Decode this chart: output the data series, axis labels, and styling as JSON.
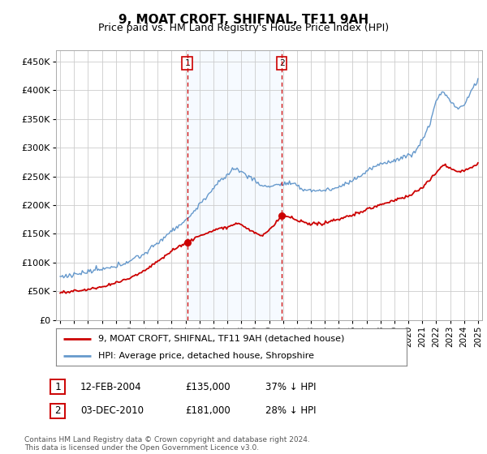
{
  "title": "9, MOAT CROFT, SHIFNAL, TF11 9AH",
  "subtitle": "Price paid vs. HM Land Registry's House Price Index (HPI)",
  "legend_line1": "9, MOAT CROFT, SHIFNAL, TF11 9AH (detached house)",
  "legend_line2": "HPI: Average price, detached house, Shropshire",
  "annotation1": {
    "num": "1",
    "date": "12-FEB-2004",
    "price": "£135,000",
    "pct": "37% ↓ HPI",
    "x_year": 2004.12
  },
  "annotation2": {
    "num": "2",
    "date": "03-DEC-2010",
    "price": "£181,000",
    "pct": "28% ↓ HPI",
    "x_year": 2010.92
  },
  "footnote": "Contains HM Land Registry data © Crown copyright and database right 2024.\nThis data is licensed under the Open Government Licence v3.0.",
  "hpi_color": "#6699cc",
  "price_color": "#cc0000",
  "vline_color": "#cc0000",
  "shade_color": "#ddeeff",
  "ylim": [
    0,
    470000
  ],
  "yticks": [
    0,
    50000,
    100000,
    150000,
    200000,
    250000,
    300000,
    350000,
    400000,
    450000
  ],
  "ytick_labels": [
    "£0",
    "£50K",
    "£100K",
    "£150K",
    "£200K",
    "£250K",
    "£300K",
    "£350K",
    "£400K",
    "£450K"
  ],
  "xlim_start": 1994.7,
  "xlim_end": 2025.3
}
